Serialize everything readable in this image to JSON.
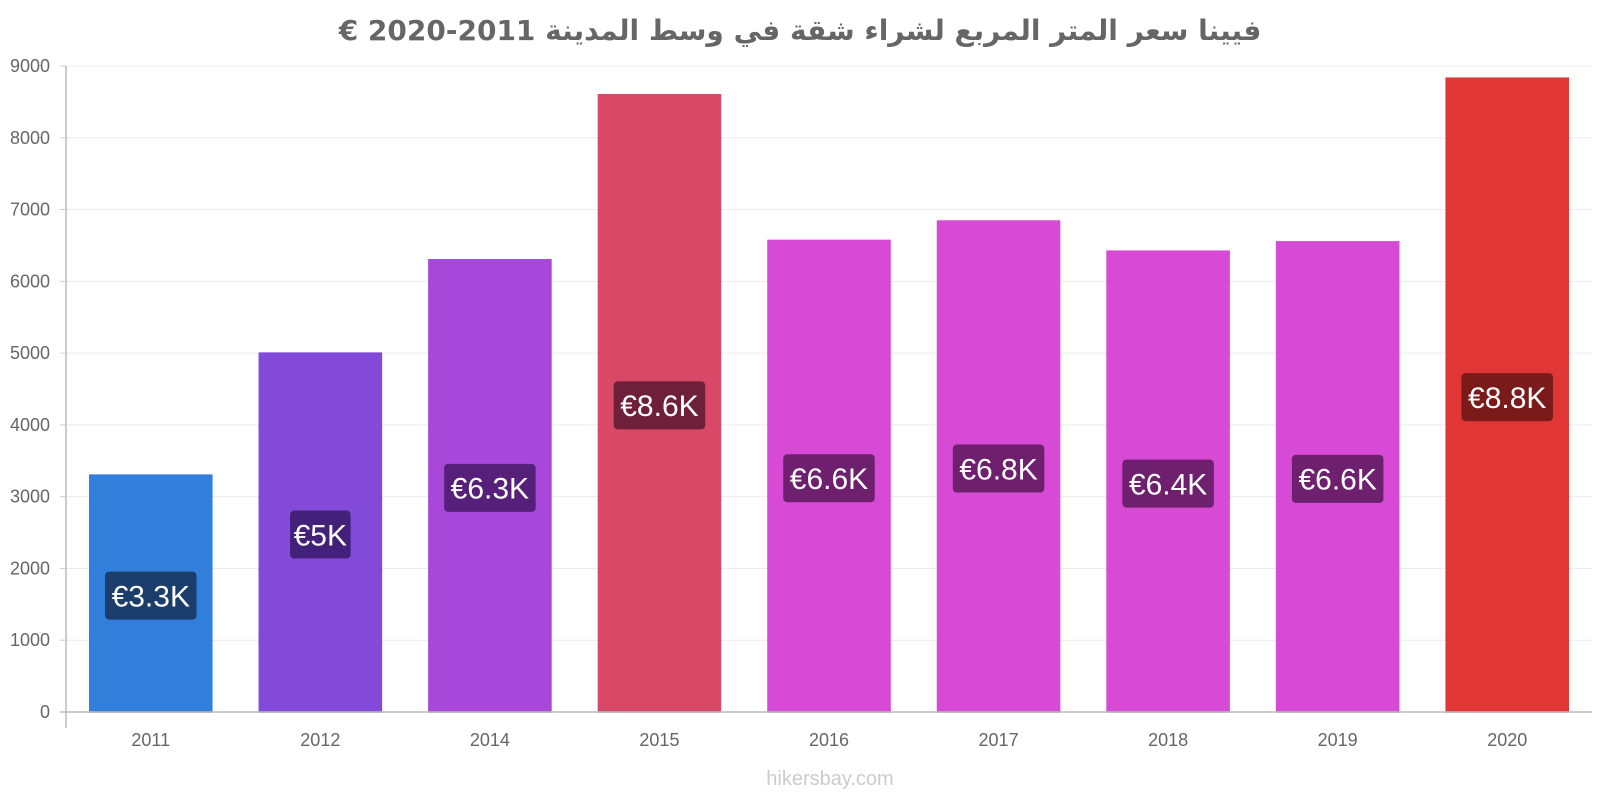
{
  "chart_data": {
    "type": "bar",
    "title": "فيينا سعر المتر المربع لشراء شقة في وسط المدينة 2011-2020 €",
    "categories": [
      "2011",
      "2012",
      "2014",
      "2015",
      "2016",
      "2017",
      "2018",
      "2019",
      "2020"
    ],
    "values": [
      3300,
      5000,
      6300,
      8600,
      6570,
      6840,
      6420,
      6550,
      8830
    ],
    "data_labels": [
      "€3.3K",
      "€5K",
      "€6.3K",
      "€8.6K",
      "€6.6K",
      "€6.8K",
      "€6.4K",
      "€6.6K",
      "€8.8K"
    ],
    "colors": [
      "#317fdb",
      "#834ad9",
      "#a748da",
      "#d84867",
      "#d74ad5",
      "#d74ad5",
      "#d74ad5",
      "#d74ad5",
      "#e03636"
    ],
    "label_bg_colors": [
      "#1a3d6b",
      "#43217a",
      "#56207a",
      "#6e1f39",
      "#6e1f6e",
      "#6e1f6e",
      "#6e1f6e",
      "#6e1f6e",
      "#7a1a1a"
    ],
    "y_ticks": [
      "0",
      "1000",
      "2000",
      "3000",
      "4000",
      "5000",
      "6000",
      "7000",
      "8000",
      "9000"
    ],
    "ylim": [
      0,
      9000
    ],
    "xlabel": "",
    "ylabel": "",
    "grid": true,
    "legend": "none"
  },
  "watermark": "hikersbay.com"
}
